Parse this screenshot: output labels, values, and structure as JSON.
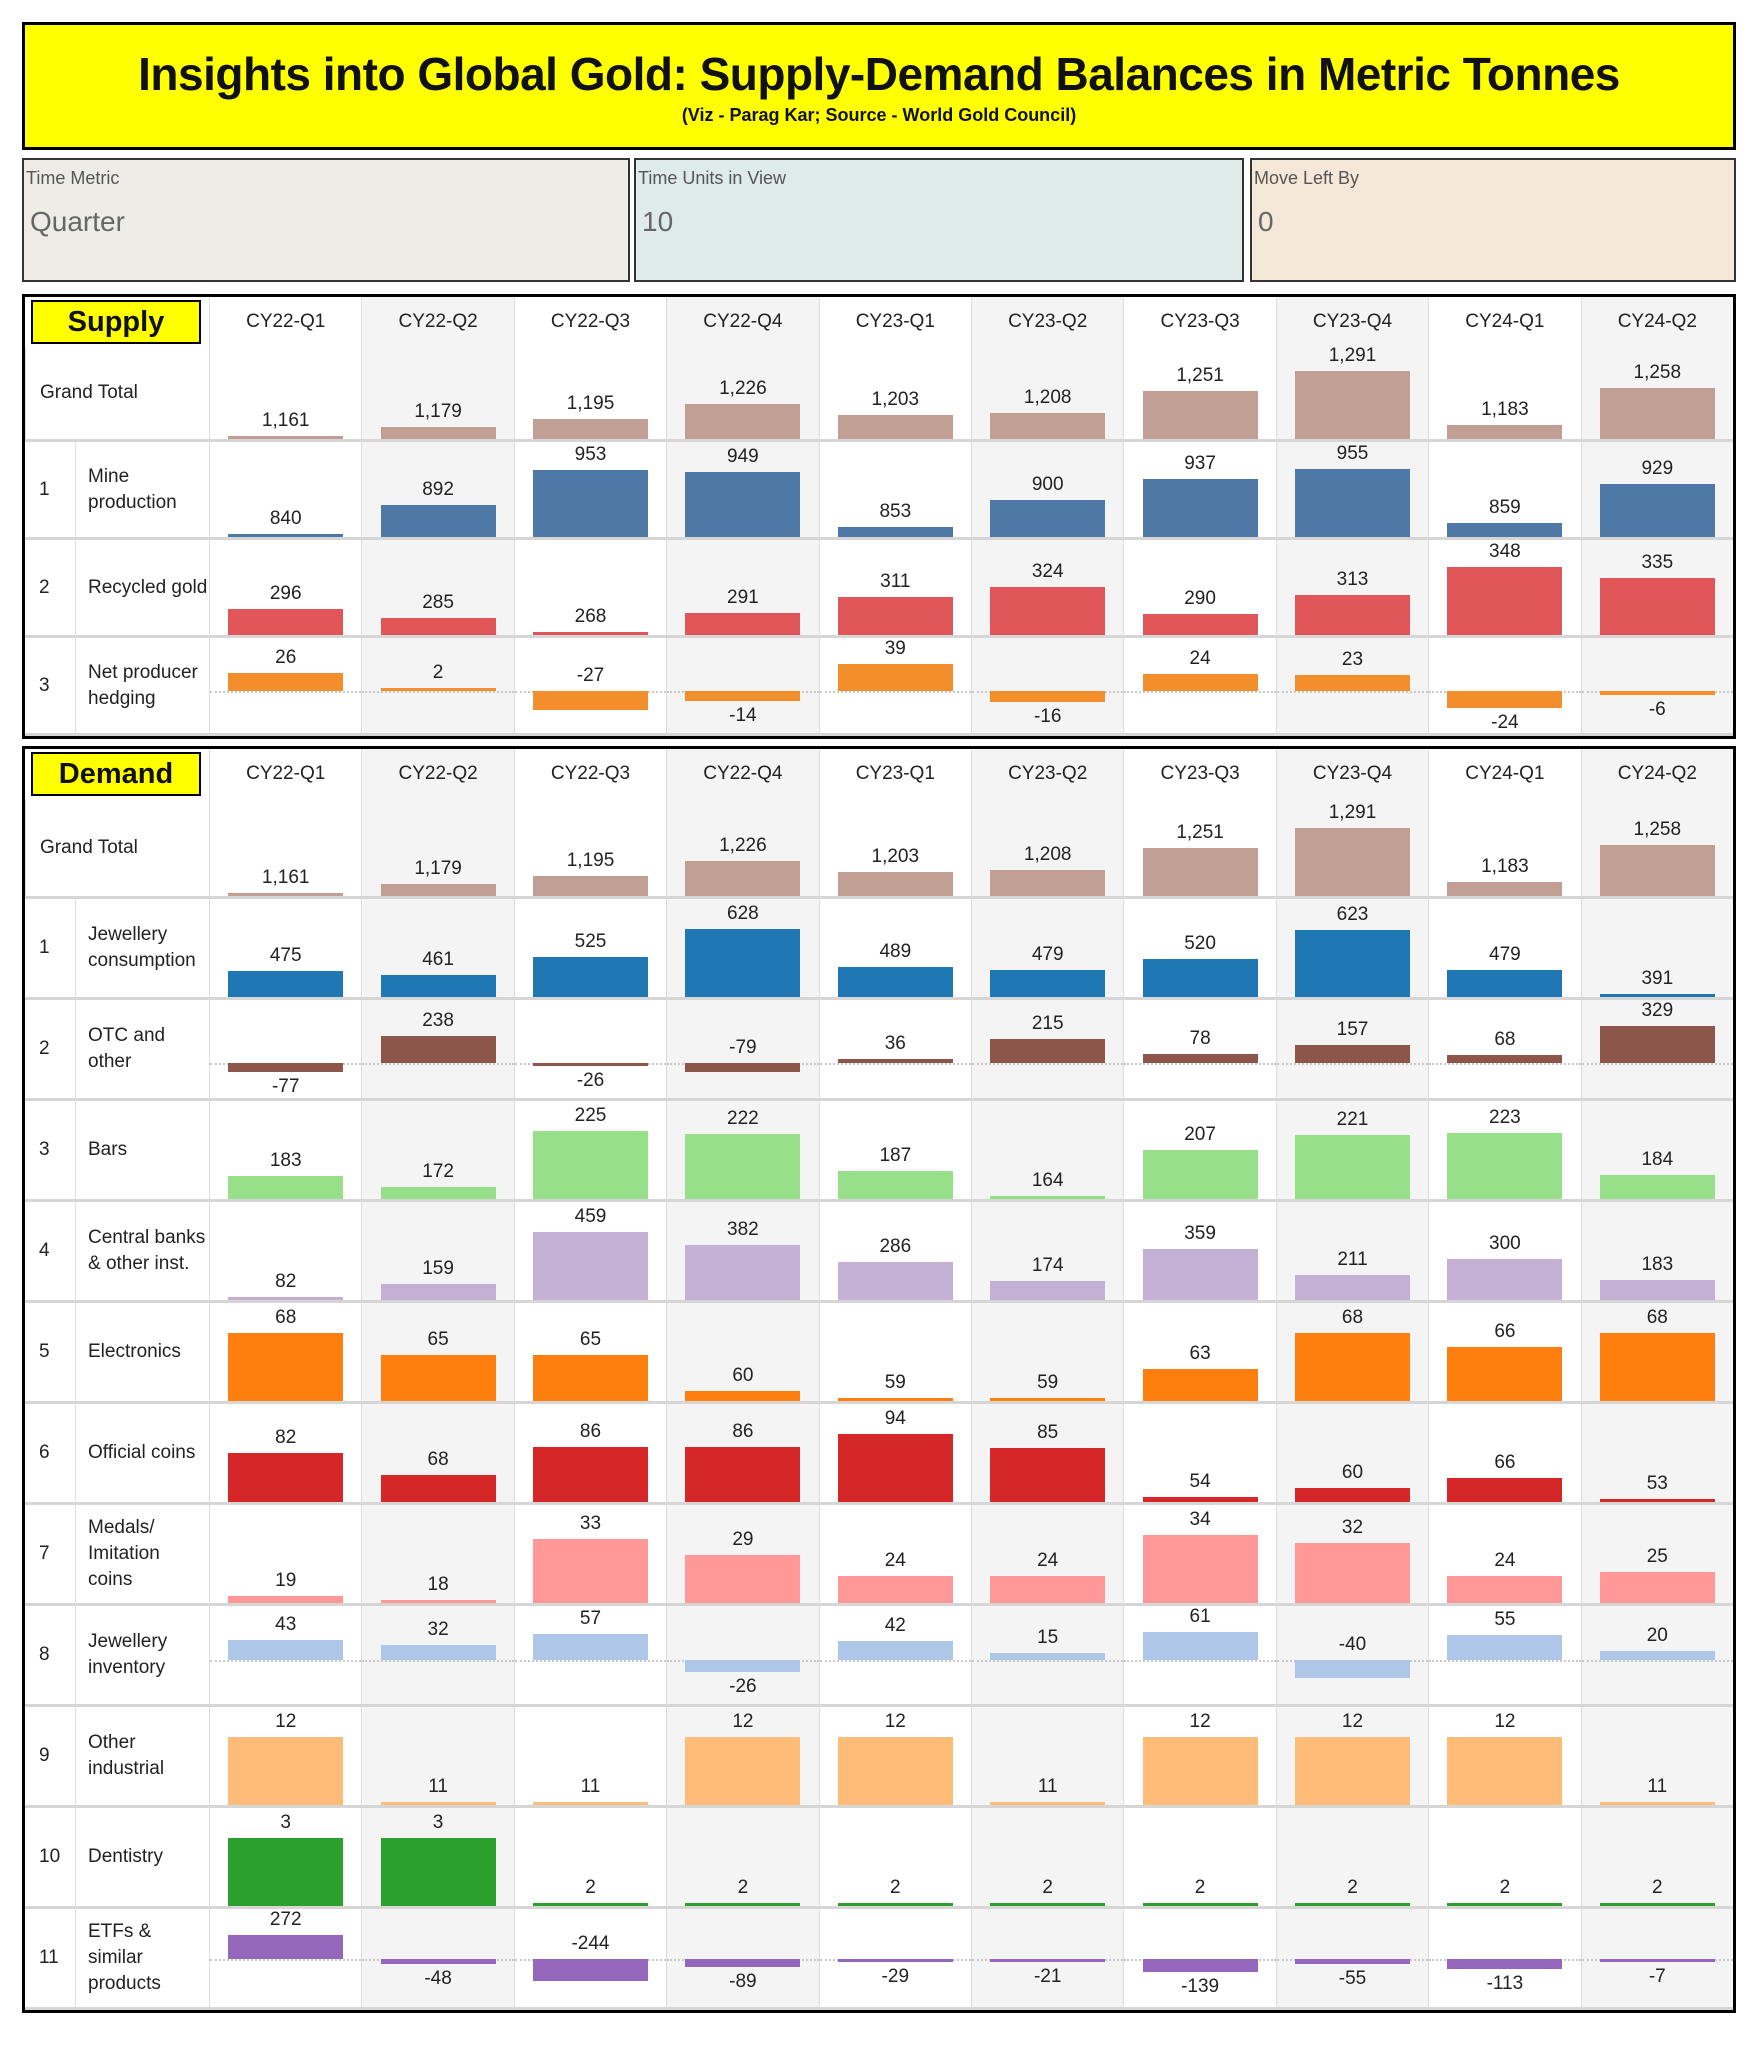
{
  "header": {
    "title": "Insights into Global Gold: Supply-Demand Balances in Metric Tonnes",
    "subtitle": "(Viz - Parag Kar; Source - World Gold Council)"
  },
  "parameters": [
    {
      "label": "Time Metric",
      "value": "Quarter",
      "bg": "#efebe7"
    },
    {
      "label": "Time Units in View",
      "value": "10",
      "bg": "#deebe8"
    },
    {
      "label": "Move Left By",
      "value": "0",
      "bg": "#f6e8d8"
    }
  ],
  "chart_data": [
    {
      "type": "bar",
      "title": "Supply",
      "categories": [
        "CY22-Q1",
        "CY22-Q2",
        "CY22-Q3",
        "CY22-Q4",
        "CY23-Q1",
        "CY23-Q2",
        "CY23-Q3",
        "CY23-Q4",
        "CY24-Q1",
        "CY24-Q2"
      ],
      "grand_total": {
        "label": "Grand Total",
        "color": "#c29f95",
        "values": [
          1161,
          1179,
          1195,
          1226,
          1203,
          1208,
          1251,
          1291,
          1183,
          1258
        ]
      },
      "series": [
        {
          "num": "1",
          "name": "Mine production",
          "color": "#4e79a7",
          "values": [
            840,
            892,
            953,
            949,
            853,
            900,
            937,
            955,
            859,
            929
          ]
        },
        {
          "num": "2",
          "name": "Recycled gold",
          "color": "#e15759",
          "values": [
            296,
            285,
            268,
            291,
            311,
            324,
            290,
            313,
            348,
            335
          ]
        },
        {
          "num": "3",
          "name": "Net producer hedging",
          "color": "#f28e2b",
          "values": [
            26,
            2,
            -27,
            -14,
            39,
            -16,
            24,
            23,
            -24,
            -6
          ]
        }
      ]
    },
    {
      "type": "bar",
      "title": "Demand",
      "categories": [
        "CY22-Q1",
        "CY22-Q2",
        "CY22-Q3",
        "CY22-Q4",
        "CY23-Q1",
        "CY23-Q2",
        "CY23-Q3",
        "CY23-Q4",
        "CY24-Q1",
        "CY24-Q2"
      ],
      "grand_total": {
        "label": "Grand Total",
        "color": "#c29f95",
        "values": [
          1161,
          1179,
          1195,
          1226,
          1203,
          1208,
          1251,
          1291,
          1183,
          1258
        ]
      },
      "series": [
        {
          "num": "1",
          "name": "Jewellery consumption",
          "color": "#1f77b4",
          "values": [
            475,
            461,
            525,
            628,
            489,
            479,
            520,
            623,
            479,
            391
          ]
        },
        {
          "num": "2",
          "name": "OTC and other",
          "color": "#8c564b",
          "values": [
            -77,
            238,
            -26,
            -79,
            36,
            215,
            78,
            157,
            68,
            329
          ]
        },
        {
          "num": "3",
          "name": "Bars",
          "color": "#98df8a",
          "values": [
            183,
            172,
            225,
            222,
            187,
            164,
            207,
            221,
            223,
            184
          ]
        },
        {
          "num": "4",
          "name": "Central banks & other inst.",
          "color": "#c5b0d5",
          "values": [
            82,
            159,
            459,
            382,
            286,
            174,
            359,
            211,
            300,
            183
          ]
        },
        {
          "num": "5",
          "name": "Electronics",
          "color": "#ff7f0e",
          "values": [
            68,
            65,
            65,
            60,
            59,
            59,
            63,
            68,
            66,
            68
          ]
        },
        {
          "num": "6",
          "name": "Official coins",
          "color": "#d62728",
          "values": [
            82,
            68,
            86,
            86,
            94,
            85,
            54,
            60,
            66,
            53
          ]
        },
        {
          "num": "7",
          "name": "Medals/ Imitation coins",
          "color": "#ff9896",
          "values": [
            19,
            18,
            33,
            29,
            24,
            24,
            34,
            32,
            24,
            25
          ]
        },
        {
          "num": "8",
          "name": "Jewellery inventory",
          "color": "#aec7e8",
          "values": [
            43,
            32,
            57,
            -26,
            42,
            15,
            61,
            -40,
            55,
            20
          ]
        },
        {
          "num": "9",
          "name": "Other industrial",
          "color": "#ffbb78",
          "values": [
            12,
            11,
            11,
            12,
            12,
            11,
            12,
            12,
            12,
            11
          ]
        },
        {
          "num": "10",
          "name": "Dentistry",
          "color": "#2ca02c",
          "values": [
            3,
            3,
            2,
            2,
            2,
            2,
            2,
            2,
            2,
            2
          ]
        },
        {
          "num": "11",
          "name": "ETFs & similar products",
          "color": "#9467bd",
          "values": [
            272,
            -48,
            -244,
            -89,
            -29,
            -21,
            -139,
            -55,
            -113,
            -7
          ]
        }
      ]
    }
  ]
}
